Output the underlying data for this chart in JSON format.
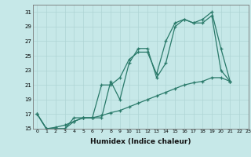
{
  "xlabel": "Humidex (Indice chaleur)",
  "ylabel": "",
  "bg_color": "#c6e8e8",
  "line_color": "#2a7a6a",
  "grid_color": "#aed4d4",
  "xlim": [
    -0.5,
    23
  ],
  "ylim": [
    15,
    32
  ],
  "yticks": [
    15,
    17,
    19,
    21,
    23,
    25,
    27,
    29,
    31
  ],
  "xticks": [
    0,
    1,
    2,
    3,
    4,
    5,
    6,
    7,
    8,
    9,
    10,
    11,
    12,
    13,
    14,
    15,
    16,
    17,
    18,
    19,
    20,
    21,
    22,
    23
  ],
  "series": [
    {
      "x": [
        0,
        1,
        2,
        3,
        4,
        5,
        6,
        7,
        8,
        9,
        10,
        11,
        12,
        13,
        14,
        15,
        16,
        17,
        18,
        19,
        20,
        21
      ],
      "y": [
        17,
        15,
        15.2,
        15.5,
        16,
        16.5,
        16.5,
        16.8,
        17.2,
        17.5,
        18,
        18.5,
        19,
        19.5,
        20,
        20.5,
        21,
        21.3,
        21.5,
        22,
        22,
        21.5
      ]
    },
    {
      "x": [
        0,
        1,
        2,
        3,
        4,
        5,
        6,
        7,
        8,
        9,
        10,
        11,
        12,
        13,
        14,
        15,
        16,
        17,
        18,
        19,
        20,
        21
      ],
      "y": [
        17,
        15,
        15,
        15,
        16,
        16.5,
        16.5,
        21,
        21,
        22,
        24.5,
        25.5,
        25.5,
        22.5,
        27,
        29.5,
        30,
        29.5,
        30,
        31,
        26,
        21.5
      ]
    },
    {
      "x": [
        0,
        1,
        2,
        3,
        4,
        5,
        6,
        7,
        8,
        9,
        10,
        11,
        12,
        13,
        14,
        15,
        16,
        17,
        18,
        19,
        20,
        21
      ],
      "y": [
        17,
        15,
        15,
        15,
        16.5,
        16.5,
        16.5,
        16.5,
        21.5,
        19,
        24,
        26,
        26,
        22,
        24,
        29,
        30,
        29.5,
        29.5,
        30.5,
        23,
        21.5
      ]
    }
  ]
}
